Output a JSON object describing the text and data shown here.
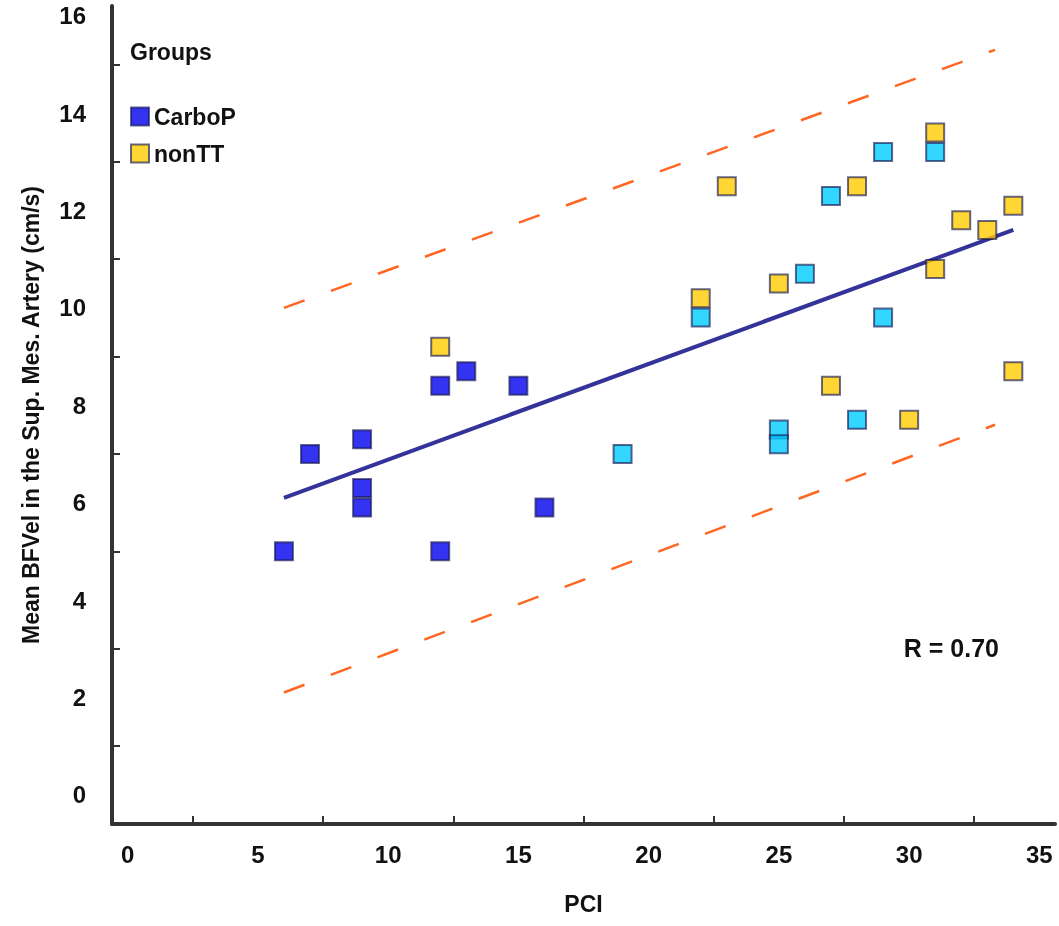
{
  "chart_data": {
    "type": "scatter",
    "xlabel": "PCI",
    "ylabel": "Mean BFVel in the Sup. Mes. Artery (cm/s)",
    "legend_title": "Groups",
    "legend": "top left",
    "marker": "square",
    "grid": false,
    "xlim": [
      -0.6,
      35.6
    ],
    "ylim": [
      -0.6,
      16.2
    ],
    "xticks": [
      0,
      {
        "value": 2.5,
        "label": null
      },
      5,
      {
        "value": 7.5,
        "label": null
      },
      10,
      {
        "value": 12.5,
        "label": null
      },
      15,
      {
        "value": 17.5,
        "label": null
      },
      20,
      {
        "value": 22.5,
        "label": null
      },
      25,
      {
        "value": 27.5,
        "label": null
      },
      30,
      {
        "value": 32.5,
        "label": null
      },
      35
    ],
    "yticks": [
      0,
      {
        "value": 1,
        "label": null
      },
      2,
      {
        "value": 3,
        "label": null
      },
      4,
      {
        "value": 5,
        "label": null
      },
      6,
      {
        "value": 7,
        "label": null
      },
      8,
      {
        "value": 9,
        "label": null
      },
      10,
      {
        "value": 11,
        "label": null
      },
      12,
      {
        "value": 13,
        "label": null
      },
      14,
      {
        "value": 15,
        "label": null
      },
      16
    ],
    "series": [
      {
        "color": "#00ccff",
        "x": [
          19,
          22,
          25,
          25,
          26,
          27,
          28,
          29,
          29,
          31
        ],
        "values": [
          7.0,
          9.8,
          7.5,
          7.2,
          10.7,
          12.3,
          7.7,
          13.2,
          9.8,
          13.2
        ]
      },
      {
        "name": "CarboP",
        "color": "#0000ee",
        "x": [
          6,
          7,
          9,
          9,
          9,
          12,
          12,
          13,
          15,
          16
        ],
        "values": [
          5.0,
          7.0,
          7.3,
          6.3,
          5.9,
          8.4,
          5.0,
          8.7,
          8.4,
          5.9
        ]
      },
      {
        "name": "nonTT",
        "color": "#ffcc00",
        "x": [
          12,
          22,
          23,
          25,
          27,
          28,
          30,
          31,
          31,
          32,
          33,
          34,
          34
        ],
        "values": [
          9.2,
          10.2,
          12.5,
          10.5,
          8.4,
          12.5,
          7.7,
          13.6,
          10.8,
          11.8,
          11.6,
          12.1,
          8.7
        ]
      },
      {
        "type": "line",
        "marker": "none",
        "color": "#333399",
        "x": [
          6,
          34
        ],
        "values": [
          6.1,
          11.6
        ]
      },
      {
        "type": "line",
        "marker": "none",
        "color": "#ff6622",
        "line_style": "dashed",
        "x": [
          6,
          33.3
        ],
        "values": [
          10.0,
          15.3
        ]
      },
      {
        "type": "line",
        "marker": "none",
        "color": "#ff6622",
        "line_style": "dashed",
        "x": [
          6,
          33.3
        ],
        "values": [
          2.1,
          7.6
        ]
      }
    ],
    "annotations": [
      "R = 0.70"
    ]
  }
}
